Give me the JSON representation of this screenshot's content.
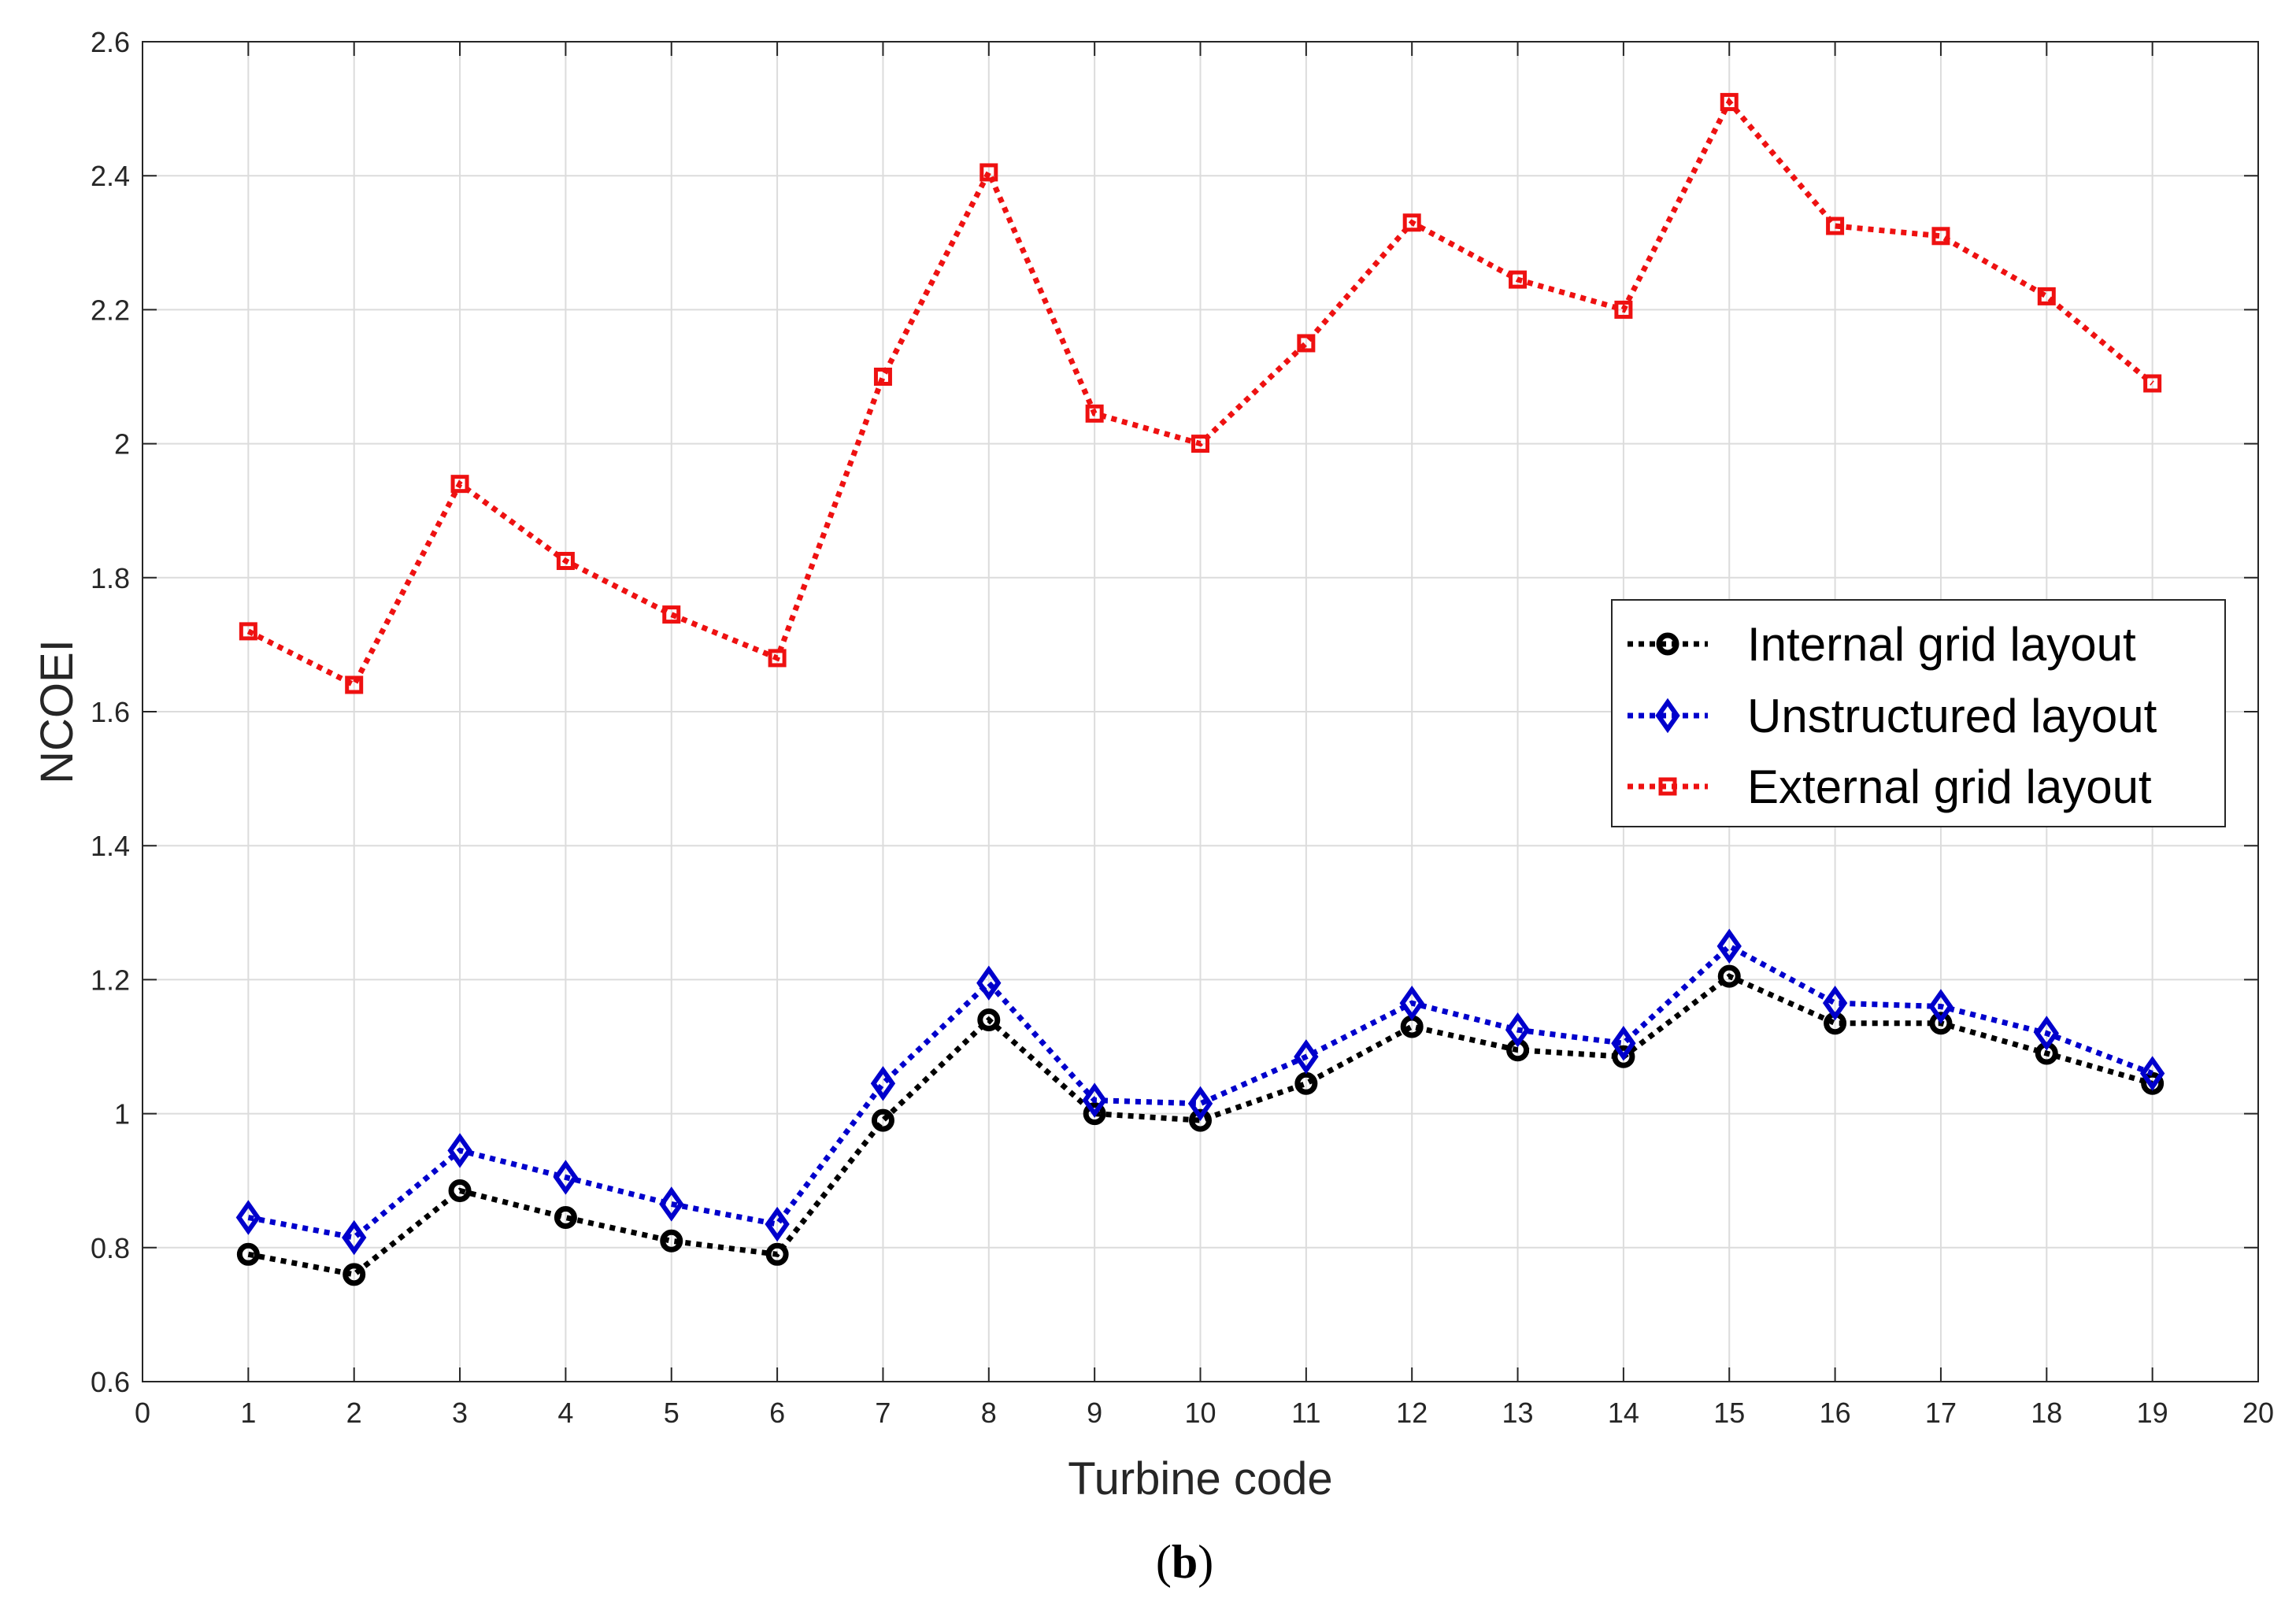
{
  "chart_data": {
    "type": "line",
    "title": "",
    "xlabel": "Turbine code",
    "ylabel": "NCOEI",
    "xlim": [
      0,
      20
    ],
    "ylim": [
      0.6,
      2.6
    ],
    "xticks": [
      0,
      1,
      2,
      3,
      4,
      5,
      6,
      7,
      8,
      9,
      10,
      11,
      12,
      13,
      14,
      15,
      16,
      17,
      18,
      19,
      20
    ],
    "yticks": [
      0.6,
      0.8,
      1,
      1.2,
      1.4,
      1.6,
      1.8,
      2,
      2.2,
      2.4,
      2.6
    ],
    "ytick_labels": [
      "0.6",
      "0.8",
      "1",
      "1.2",
      "1.4",
      "1.6",
      "1.8",
      "2",
      "2.2",
      "2.4",
      "2.6"
    ],
    "grid": true,
    "legend_position": "right, middle",
    "x": [
      1,
      2,
      3,
      4,
      5,
      6,
      7,
      8,
      9,
      10,
      11,
      12,
      13,
      14,
      15,
      16,
      17,
      18,
      19
    ],
    "series": [
      {
        "name": "Internal grid layout",
        "color": "#000000",
        "marker": "circle",
        "values": [
          0.79,
          0.76,
          0.885,
          0.845,
          0.81,
          0.79,
          0.99,
          1.14,
          1.0,
          0.99,
          1.045,
          1.13,
          1.095,
          1.085,
          1.205,
          1.135,
          1.135,
          1.09,
          1.045
        ]
      },
      {
        "name": "Unstructured layout",
        "color": "#0000cc",
        "marker": "diamond",
        "values": [
          0.845,
          0.815,
          0.945,
          0.905,
          0.865,
          0.835,
          1.045,
          1.195,
          1.02,
          1.015,
          1.085,
          1.165,
          1.125,
          1.105,
          1.25,
          1.165,
          1.16,
          1.12,
          1.06
        ]
      },
      {
        "name": "External grid layout",
        "color": "#ee1111",
        "marker": "square",
        "values": [
          1.72,
          1.64,
          1.94,
          1.825,
          1.745,
          1.68,
          2.1,
          2.405,
          2.045,
          2.0,
          2.15,
          2.33,
          2.245,
          2.2,
          2.51,
          2.325,
          2.31,
          2.22,
          2.09
        ]
      }
    ]
  },
  "caption": {
    "open": "(",
    "letter": "b",
    "close": ")"
  }
}
